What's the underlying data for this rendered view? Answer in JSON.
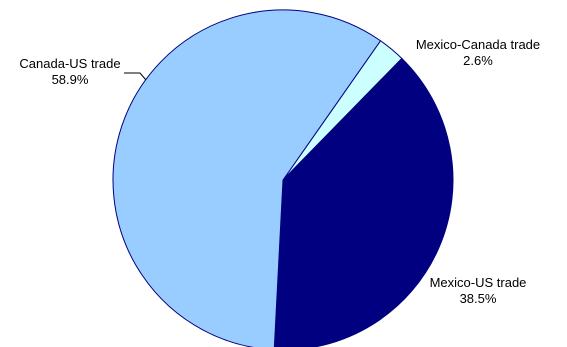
{
  "chart_data": {
    "type": "pie",
    "slices": [
      {
        "label": "Mexico-Canada trade",
        "value": 2.6,
        "value_label": "2.6%",
        "color": "#ccffff"
      },
      {
        "label": "Mexico-US trade",
        "value": 38.5,
        "value_label": "38.5%",
        "color": "#000080"
      },
      {
        "label": "Canada-US trade",
        "value": 58.9,
        "value_label": "58.9%",
        "color": "#99ccff"
      }
    ],
    "slice_outline_color": "#000080",
    "start_angle_deg": 35,
    "direction": "clockwise",
    "legend": "none"
  }
}
